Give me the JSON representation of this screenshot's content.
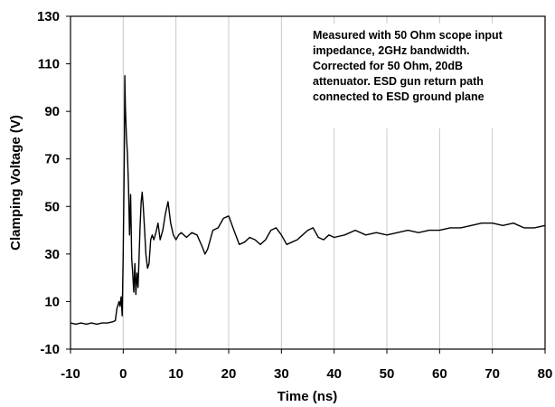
{
  "chart_data": {
    "type": "line",
    "xlabel": "Time (ns)",
    "ylabel": "Clamping Voltage (V)",
    "xlim": [
      -10,
      80
    ],
    "ylim": [
      -10,
      130
    ],
    "xticks": [
      "-10",
      "0",
      "10",
      "20",
      "30",
      "40",
      "50",
      "60",
      "70",
      "80"
    ],
    "yticks": [
      "130",
      "110",
      "90",
      "70",
      "50",
      "30",
      "10",
      "-10"
    ],
    "grid": "vertical",
    "annotation": [
      "Measured with 50 Ohm scope input",
      "impedance, 2GHz bandwidth.",
      "Corrected for 50 Ohm, 20dB",
      "attenuator. ESD gun return path",
      "connected to ESD ground plane"
    ],
    "series": [
      {
        "x": [
          -10,
          -9,
          -8,
          -7,
          -6,
          -5,
          -4,
          -3,
          -2,
          -1.5,
          -1.2,
          -0.8,
          -0.6,
          -0.4,
          -0.2,
          0,
          0.2,
          0.3,
          0.4,
          0.6,
          0.8,
          1.0,
          1.2,
          1.4,
          1.6,
          1.8,
          2.0,
          2.2,
          2.4,
          2.6,
          2.8,
          3.0,
          3.2,
          3.4,
          3.6,
          3.8,
          4.0,
          4.3,
          4.6,
          4.9,
          5.2,
          5.5,
          5.8,
          6.2,
          6.6,
          7.0,
          7.5,
          8.0,
          8.5,
          9.0,
          9.5,
          10.0,
          10.5,
          11,
          12,
          13,
          14,
          15,
          15.5,
          16,
          16.5,
          17,
          18,
          19,
          20,
          21,
          22,
          23,
          24,
          25,
          26,
          27,
          28,
          29,
          30,
          31,
          32,
          33,
          34,
          35,
          36,
          37,
          38,
          39,
          40,
          42,
          44,
          46,
          48,
          50,
          52,
          54,
          56,
          58,
          60,
          62,
          64,
          66,
          68,
          70,
          72,
          74,
          76,
          78,
          80
        ],
        "y": [
          1,
          0.5,
          1,
          0.5,
          1,
          0.5,
          1,
          1,
          1.5,
          2,
          7,
          10,
          8,
          12,
          4,
          30,
          70,
          105,
          92,
          80,
          72,
          58,
          38,
          55,
          28,
          22,
          14,
          26,
          13,
          22,
          16,
          28,
          42,
          52,
          56,
          50,
          42,
          30,
          24,
          26,
          36,
          38,
          36,
          39,
          43,
          36,
          40,
          47,
          52,
          43,
          38,
          36,
          38,
          39,
          37,
          39,
          38,
          33,
          30,
          32,
          36,
          40,
          41,
          45,
          46,
          40,
          34,
          35,
          37,
          36,
          34,
          36,
          40,
          41,
          38,
          34,
          35,
          36,
          38,
          40,
          41,
          37,
          36,
          38,
          37,
          38,
          40,
          38,
          39,
          38,
          39,
          40,
          39,
          40,
          40,
          41,
          41,
          42,
          43,
          43,
          42,
          43,
          41,
          41,
          42
        ]
      }
    ]
  }
}
